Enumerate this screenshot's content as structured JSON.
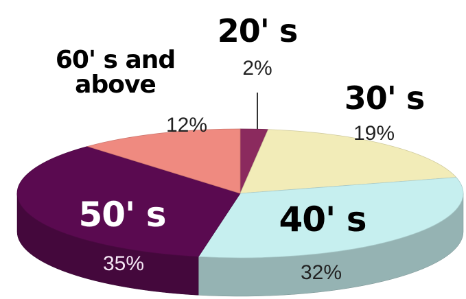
{
  "chart_data": {
    "type": "pie",
    "categories": [
      "20' s",
      "30' s",
      "40' s",
      "50' s",
      "60' s and above"
    ],
    "values": [
      2,
      19,
      32,
      35,
      12
    ],
    "value_labels": [
      "2%",
      "19%",
      "32%",
      "35%",
      "12%"
    ],
    "colors": [
      "#8b2a5e",
      "#f2ecb8",
      "#c6efef",
      "#5a0a50",
      "#ef8a80"
    ]
  }
}
